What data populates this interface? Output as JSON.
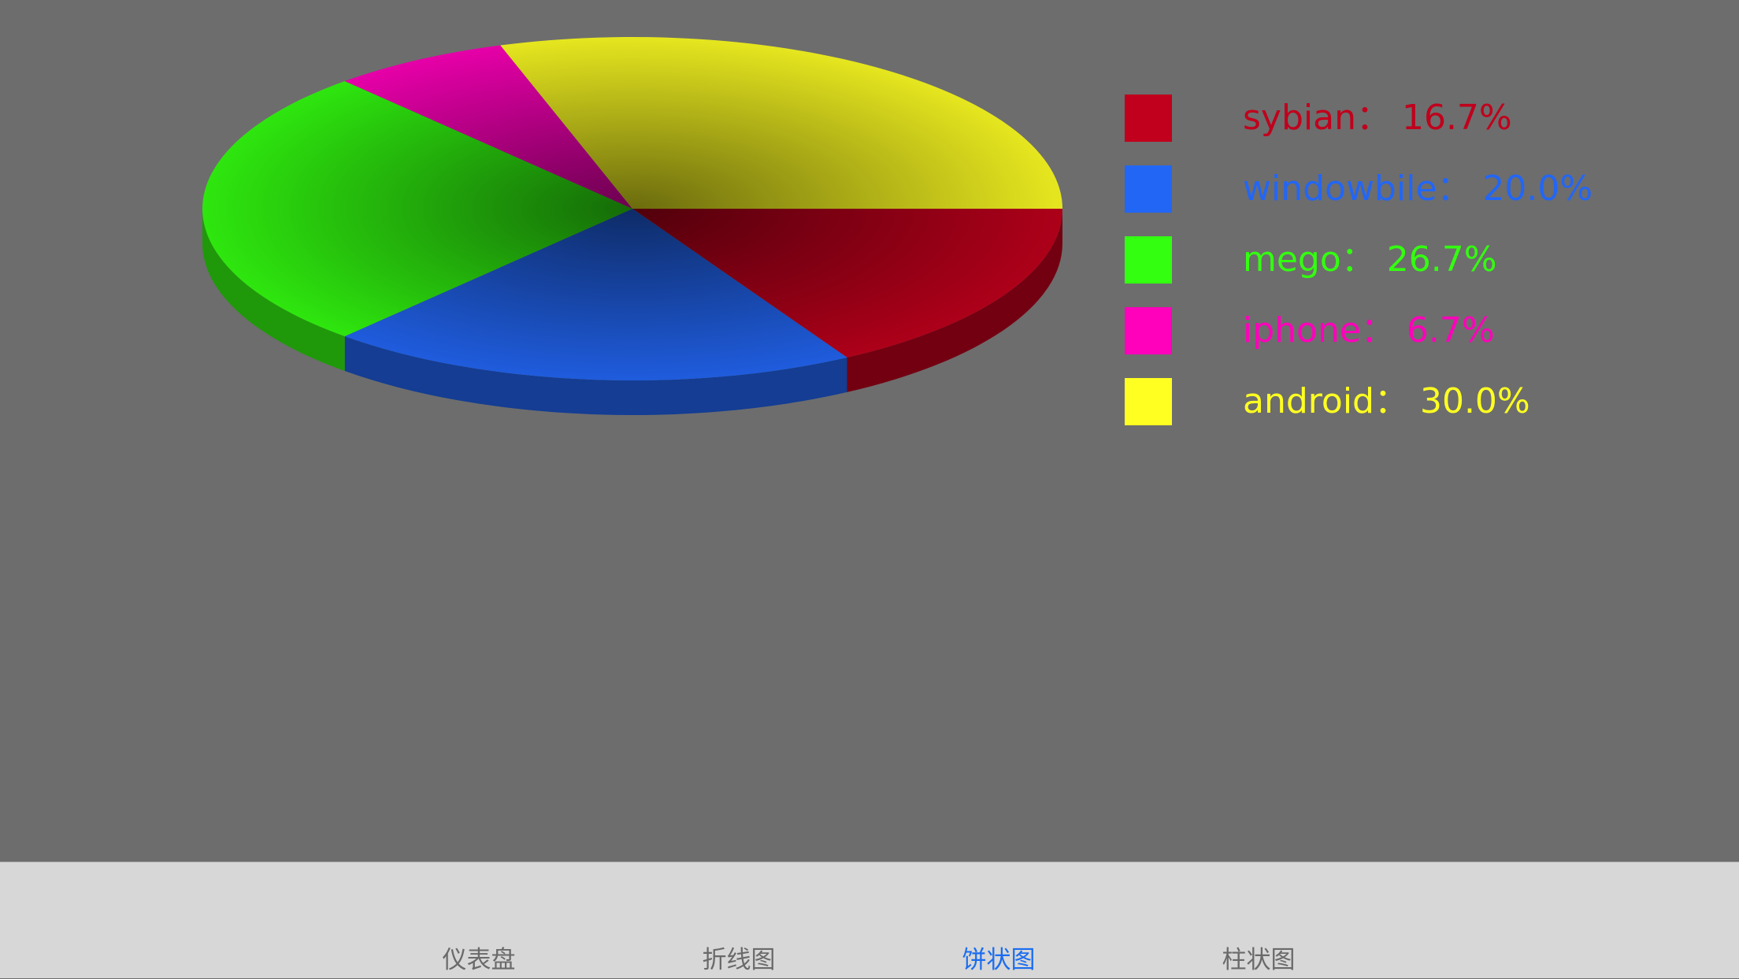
{
  "chart_data": {
    "type": "pie",
    "title": "",
    "style": "3d",
    "legend_position": "right",
    "slices": [
      {
        "label": "sybian",
        "value": 16.7,
        "display": "16.7%",
        "color": "#c0001c"
      },
      {
        "label": "windowbile",
        "value": 20.0,
        "display": "20.0%",
        "color": "#2266f5"
      },
      {
        "label": "mego",
        "value": 26.7,
        "display": "26.7%",
        "color": "#33ff10"
      },
      {
        "label": "iphone",
        "value": 6.7,
        "display": "6.7%",
        "color": "#ff00bb"
      },
      {
        "label": "android",
        "value": 30.0,
        "display": "30.0%",
        "color": "#ffff22"
      }
    ],
    "legend_separator": "："
  },
  "colors": {
    "background": "#6d6d6d",
    "tab_bar": "#d7d7d7",
    "tab_active": "#1a6cf0",
    "tab_inactive": "#6a6a6a"
  },
  "tab_bar": {
    "items": [
      {
        "label": "仪表盘",
        "active": false,
        "icon": ""
      },
      {
        "label": "折线图",
        "active": false,
        "icon": ""
      },
      {
        "label": "饼状图",
        "active": true,
        "icon": ""
      },
      {
        "label": "柱状图",
        "active": false,
        "icon": ""
      }
    ]
  }
}
